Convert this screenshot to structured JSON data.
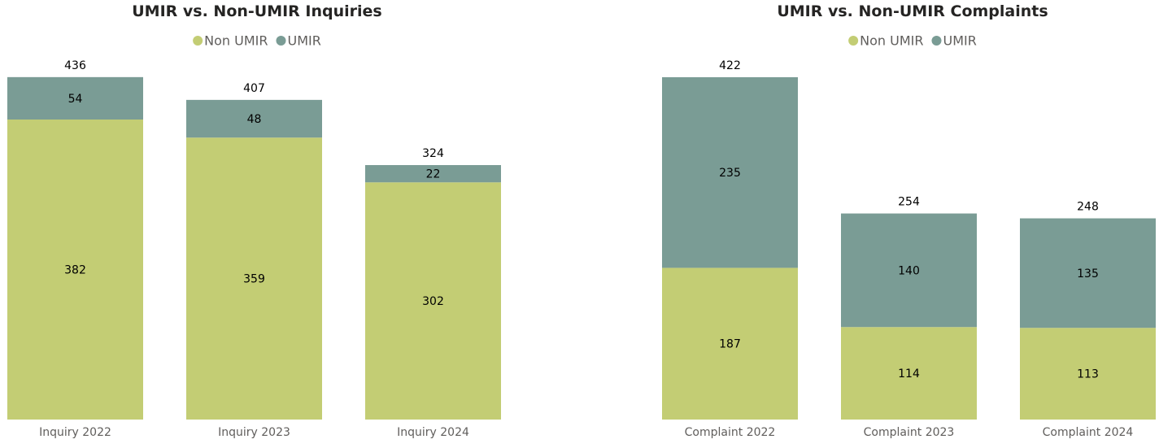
{
  "chart_data": [
    {
      "type": "bar",
      "stacked": true,
      "title": "UMIR vs. Non-UMIR Inquiries",
      "legend_position": "top-center",
      "grid": false,
      "categories": [
        "Inquiry 2022",
        "Inquiry 2023",
        "Inquiry 2024"
      ],
      "series": [
        {
          "name": "Non UMIR",
          "color": "#c3cd74",
          "values": [
            382,
            359,
            302
          ]
        },
        {
          "name": "UMIR",
          "color": "#7a9c95",
          "values": [
            54,
            48,
            22
          ]
        }
      ],
      "totals": [
        436,
        407,
        324
      ],
      "ylim": [
        0,
        470
      ]
    },
    {
      "type": "bar",
      "stacked": true,
      "title": "UMIR vs. Non-UMIR Complaints",
      "legend_position": "top-center",
      "grid": false,
      "categories": [
        "Complaint 2022",
        "Complaint 2023",
        "Complaint 2024"
      ],
      "series": [
        {
          "name": "Non UMIR",
          "color": "#c3cd74",
          "values": [
            187,
            114,
            113
          ]
        },
        {
          "name": "UMIR",
          "color": "#7a9c95",
          "values": [
            235,
            140,
            135
          ]
        }
      ],
      "totals": [
        422,
        254,
        248
      ],
      "ylim": [
        0,
        455
      ]
    }
  ]
}
